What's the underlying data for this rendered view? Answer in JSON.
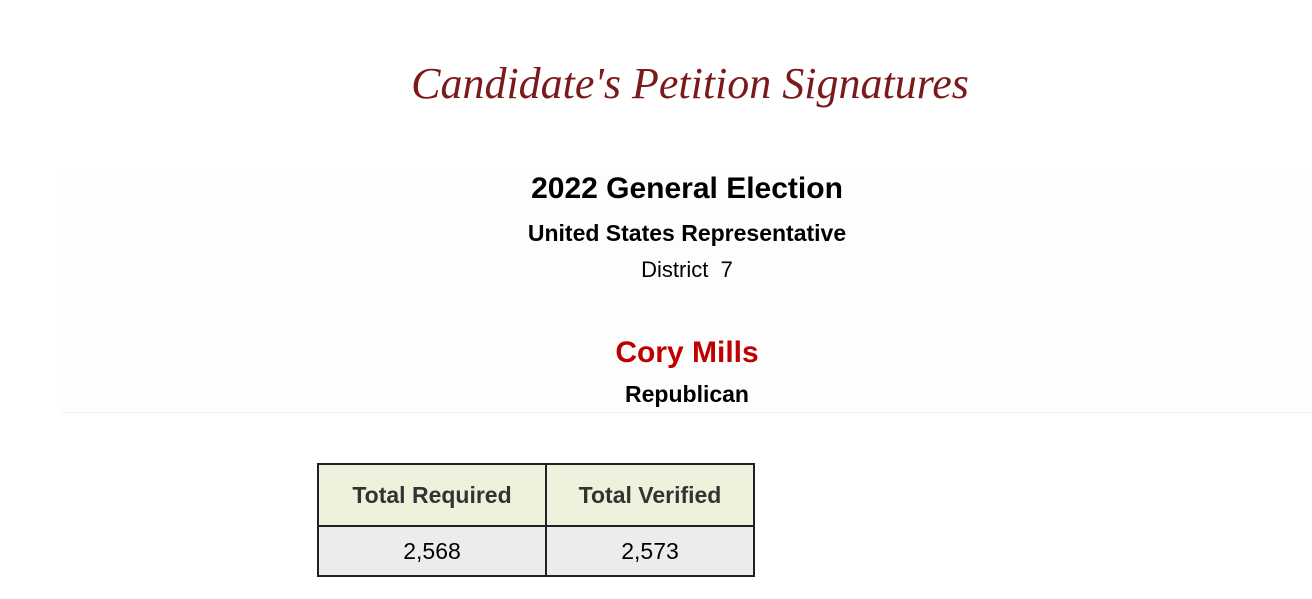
{
  "header": {
    "title": "Candidate's Petition Signatures"
  },
  "election": {
    "name": "2022 General Election",
    "office": "United States Representative",
    "district": "District  7"
  },
  "candidate": {
    "name": "Cory Mills",
    "party": "Republican"
  },
  "table": {
    "headers": [
      "Total Required",
      "Total Verified"
    ],
    "rows": [
      [
        "2,568",
        "2,573"
      ]
    ]
  }
}
